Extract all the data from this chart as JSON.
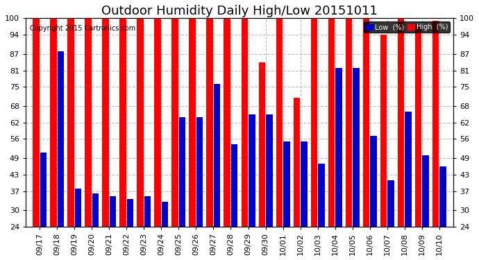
{
  "title": "Outdoor Humidity Daily High/Low 20151011",
  "copyright": "Copyright 2015 Cartronics.com",
  "dates": [
    "09/17",
    "09/18",
    "09/19",
    "09/20",
    "09/21",
    "09/22",
    "09/23",
    "09/24",
    "09/25",
    "09/26",
    "09/27",
    "09/28",
    "09/29",
    "09/30",
    "10/01",
    "10/02",
    "10/03",
    "10/04",
    "10/05",
    "10/06",
    "10/07",
    "10/08",
    "10/09",
    "10/10"
  ],
  "high": [
    100,
    100,
    100,
    100,
    100,
    100,
    100,
    100,
    100,
    100,
    100,
    100,
    100,
    84,
    100,
    71,
    100,
    100,
    100,
    100,
    94,
    100,
    97,
    99
  ],
  "low": [
    51,
    88,
    38,
    36,
    35,
    34,
    35,
    33,
    64,
    64,
    76,
    54,
    65,
    65,
    55,
    55,
    47,
    82,
    82,
    57,
    41,
    66,
    50,
    46
  ],
  "bar_width": 0.38,
  "bar_gap": 0.04,
  "ylim": [
    24,
    100
  ],
  "yticks": [
    24,
    30,
    37,
    43,
    49,
    56,
    62,
    68,
    75,
    81,
    87,
    94,
    100
  ],
  "high_color": "#FF0000",
  "low_color": "#0000CC",
  "bg_color": "#FFFFFF",
  "grid_color": "#BBBBBB",
  "title_fontsize": 13,
  "tick_fontsize": 8,
  "copyright_fontsize": 7,
  "legend_low_label": "Low  (%)",
  "legend_high_label": "High  (%)"
}
